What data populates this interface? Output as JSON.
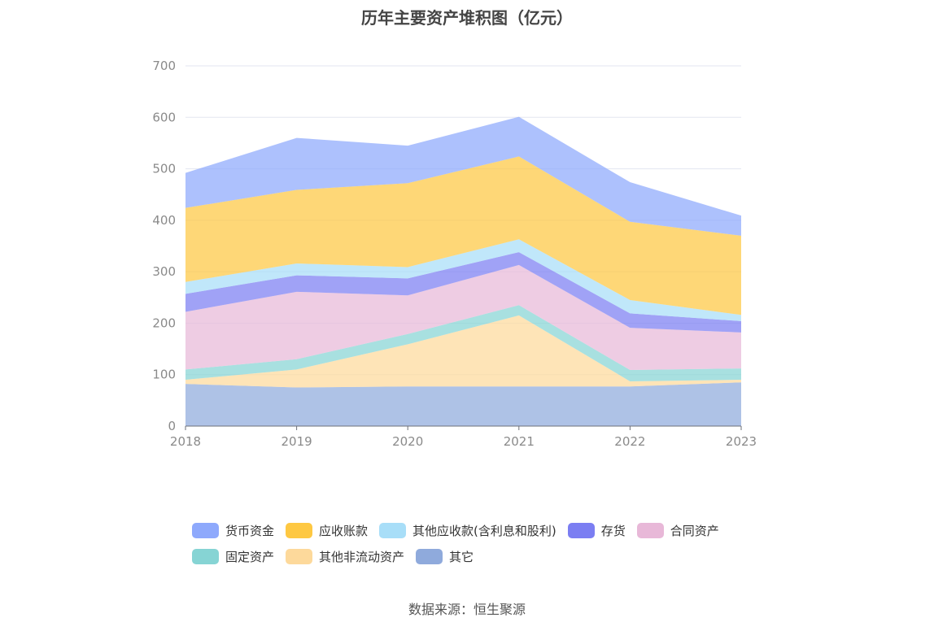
{
  "chart_data": {
    "type": "area",
    "stacked": true,
    "title": "历年主要资产堆积图（亿元）",
    "categories": [
      "2018",
      "2019",
      "2020",
      "2021",
      "2022",
      "2023"
    ],
    "ylim": [
      0,
      700
    ],
    "yticks": [
      0,
      100,
      200,
      300,
      400,
      500,
      600,
      700
    ],
    "grid": true,
    "legend_position": "bottom",
    "series": [
      {
        "name": "其它",
        "color": "#8faadc",
        "values": [
          82,
          75,
          77,
          77,
          77,
          85
        ]
      },
      {
        "name": "其他非流动资产",
        "color": "#fdd99b",
        "values": [
          8,
          35,
          82,
          138,
          10,
          5
        ]
      },
      {
        "name": "固定资产",
        "color": "#86d4d4",
        "values": [
          20,
          20,
          20,
          20,
          22,
          22
        ]
      },
      {
        "name": "合同资产",
        "color": "#e8b8d8",
        "values": [
          112,
          131,
          75,
          78,
          82,
          70
        ]
      },
      {
        "name": "存货",
        "color": "#7b7ef2",
        "values": [
          35,
          32,
          33,
          25,
          28,
          22
        ]
      },
      {
        "name": "其他应收款(含利息和股利)",
        "color": "#a8def8",
        "values": [
          23,
          23,
          22,
          25,
          26,
          12
        ]
      },
      {
        "name": "应收账款",
        "color": "#fec842",
        "values": [
          144,
          143,
          163,
          161,
          152,
          154
        ]
      },
      {
        "name": "货币资金",
        "color": "#8ea9fc",
        "values": [
          68,
          101,
          73,
          77,
          77,
          39
        ]
      }
    ],
    "legend_rows": [
      [
        "货币资金",
        "应收账款",
        "其他应收款(含利息和股利)",
        "存货",
        "合同资产"
      ],
      [
        "固定资产",
        "其他非流动资产",
        "其它"
      ]
    ]
  },
  "source_note": "数据来源：恒生聚源"
}
